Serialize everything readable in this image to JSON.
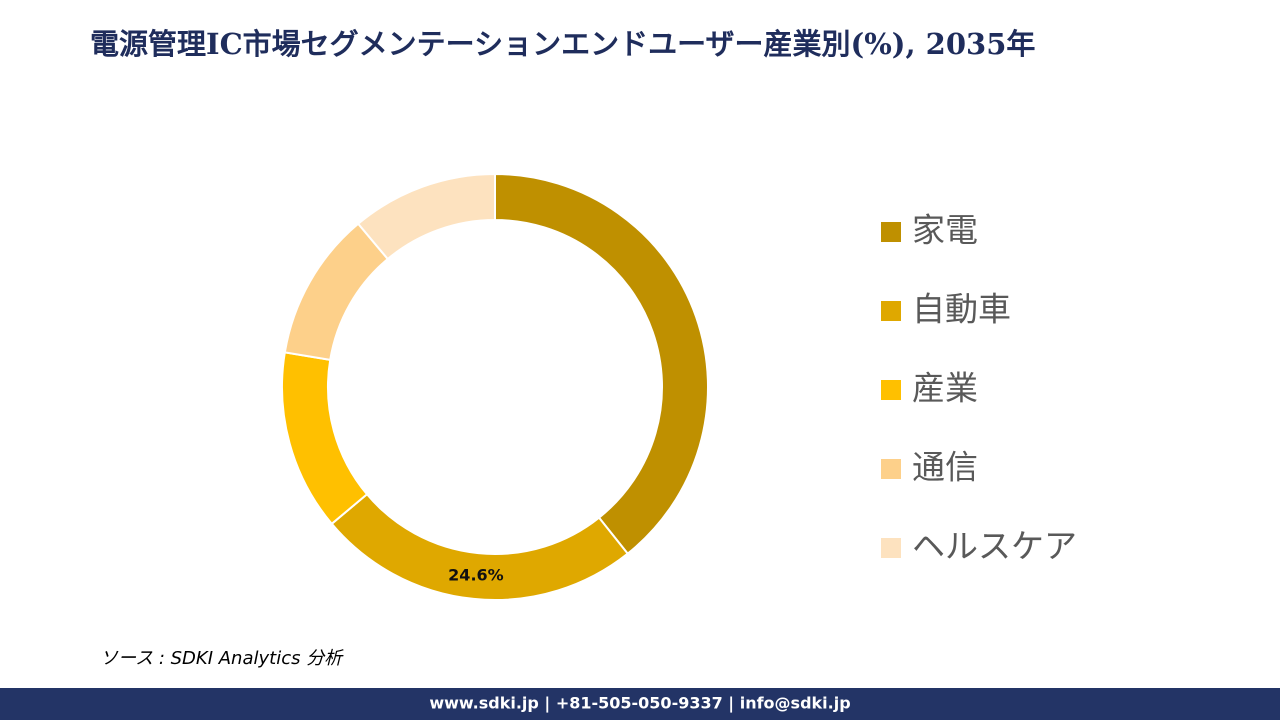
{
  "chart_data": {
    "type": "donut",
    "title": "電源管理IC市場セグメンテーションエンドユーザー産業別(%), 2035年",
    "categories": [
      "家電",
      "自動車",
      "産業",
      "通信",
      "ヘルスケア"
    ],
    "values": [
      39.3,
      24.6,
      13.7,
      11.3,
      11.1
    ],
    "value_labels": [
      null,
      "24.6%",
      null,
      null,
      null
    ],
    "colors": [
      "#bf9000",
      "#dfa800",
      "#ffc000",
      "#fdd08a",
      "#fde2bf"
    ],
    "legend": "right"
  },
  "source": "ソース : SDKI Analytics 分析",
  "footer": "www.sdki.jp | +81-505-050-9337 | info@sdki.jp"
}
